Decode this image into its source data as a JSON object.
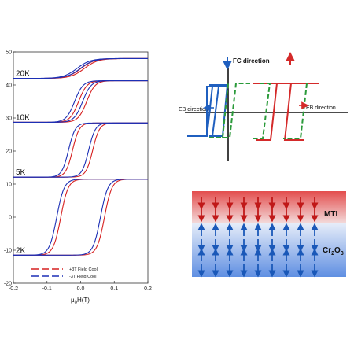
{
  "chart_data": {
    "type": "line",
    "xlabel": "μ₀H(T)",
    "ylabel": "",
    "xlim": [
      -0.2,
      0.2
    ],
    "ylim": [
      -20,
      50
    ],
    "x_ticks": [
      "-0.2",
      "-0.1",
      "0.0",
      "0.1",
      "0.2"
    ],
    "y_ticks": [
      "-20",
      "-10",
      "0",
      "10",
      "20",
      "30",
      "40",
      "50"
    ],
    "curves": [
      {
        "label": "20K",
        "offset": 45,
        "amplitude": 3,
        "coercive": 0.005,
        "width": 0.04
      },
      {
        "label": "10K",
        "offset": 35,
        "amplitude": 6.3,
        "coercive": 0.012,
        "width": 0.025
      },
      {
        "label": "5K",
        "offset": 20.3,
        "amplitude": 8.2,
        "coercive": 0.03,
        "width": 0.02
      },
      {
        "label": "2K",
        "offset": 0,
        "amplitude": 11.5,
        "coercive": 0.065,
        "width": 0.022
      }
    ],
    "series": [
      {
        "name": "+3T Field Cool",
        "color": "#d62020",
        "shift": 0.006
      },
      {
        "name": "-3T Field Cool",
        "color": "#1c2fb5",
        "shift": -0.006
      }
    ],
    "legend_position": "bottom-left"
  },
  "diagram": {
    "fc_label": "FC direction",
    "eb_left_label": "EB direction",
    "eb_right_label": "EB direction",
    "colors": {
      "blue": "#1f5fbf",
      "red": "#d42a2a",
      "green": "#2a9a3a"
    }
  },
  "layers": {
    "top_label": "MTI",
    "bottom_label_main": "Cr",
    "bottom_label_sub1": "2",
    "bottom_label_mid": "O",
    "bottom_label_sub2": "3",
    "top_color": "#e85a5a",
    "bottom_color": "#6a9ae6"
  }
}
